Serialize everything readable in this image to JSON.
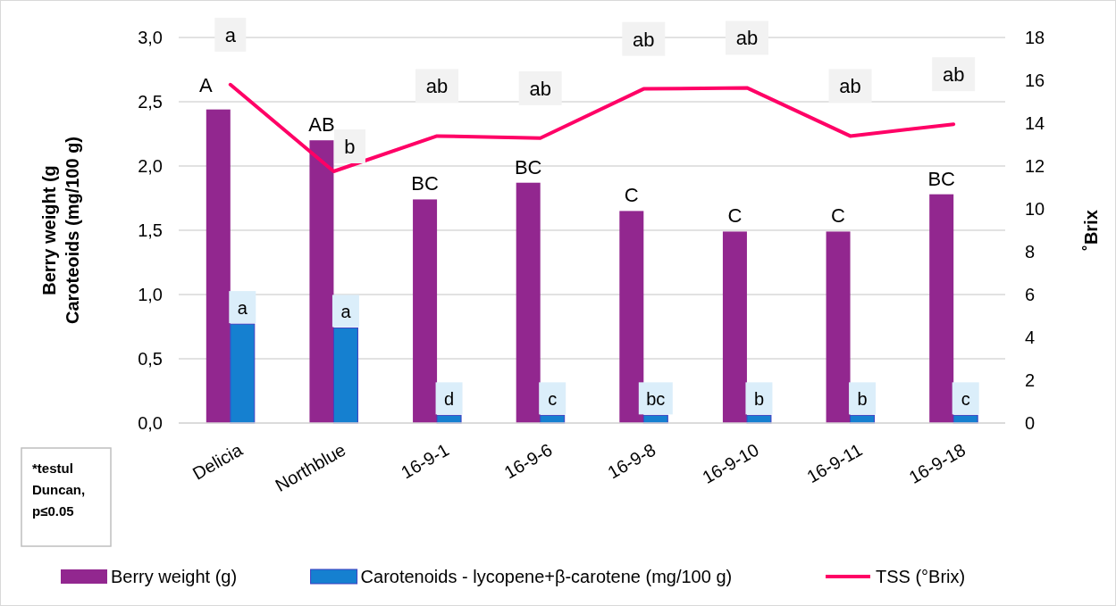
{
  "chart_data": {
    "type": "bar",
    "categories": [
      "Delicia",
      "Northblue",
      "16-9-1",
      "16-9-6",
      "16-9-8",
      "16-9-10",
      "16-9-11",
      "16-9-18"
    ],
    "ylabel": "Berry weight (g\nCaroteoids (mg/100 g)",
    "y2label": "˚Brix",
    "ylim": [
      0,
      3
    ],
    "yticks": [
      {
        "value": 0,
        "label": "0,0"
      },
      {
        "value": 0.5,
        "label": "0,5"
      },
      {
        "value": 1,
        "label": "1,0"
      },
      {
        "value": 1.5,
        "label": "1,5"
      },
      {
        "value": 2,
        "label": "2,0"
      },
      {
        "value": 2.5,
        "label": "2,5"
      },
      {
        "value": 3,
        "label": "3,0"
      }
    ],
    "y2lim": [
      0,
      18
    ],
    "y2ticks": [
      0,
      2,
      4,
      6,
      8,
      10,
      12,
      14,
      16,
      18
    ],
    "grid": "y",
    "legend": "bottom",
    "series": [
      {
        "name": "Berry weight (g)",
        "color": "#92278f",
        "values": [
          2.44,
          2.2,
          1.74,
          1.87,
          1.65,
          1.49,
          1.49,
          1.78
        ],
        "value_labels": [
          "A",
          "AB",
          "BC",
          "BC",
          "C",
          "C",
          "C",
          "BC"
        ]
      },
      {
        "name": "Carotenoids - lycopene+β-carotene (mg/100 g)",
        "color": "#1580d0",
        "values": [
          0.77,
          0.74,
          0.06,
          0.06,
          0.06,
          0.06,
          0.06,
          0.06
        ],
        "value_labels": [
          "a",
          "a",
          "d",
          "c",
          "bc",
          "b",
          "b",
          "c"
        ]
      },
      {
        "name": "TSS (°Brix)",
        "type": "line",
        "axis": "y2",
        "color": "#ff0066",
        "values": [
          15.8,
          11.75,
          13.4,
          13.3,
          15.6,
          15.65,
          13.4,
          13.95
        ],
        "value_labels": [
          "a",
          "b",
          "ab",
          "ab",
          "ab",
          "ab",
          "ab",
          "ab"
        ]
      }
    ],
    "annotations": [
      "*testul Duncan, p≤0.05"
    ]
  }
}
